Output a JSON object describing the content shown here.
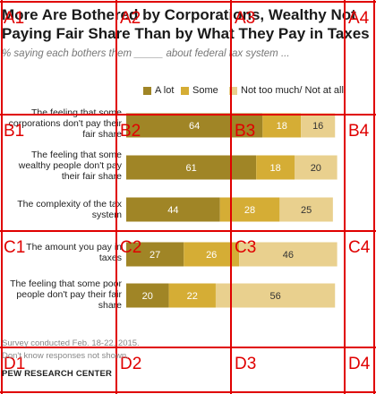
{
  "title": "More Are Bothered by Corporations, Wealthy Not Paying Fair Share Than by What They Pay in Taxes",
  "subtitle": "% saying each bothers them _____ about federal tax system ...",
  "notes": [
    "Survey conducted Feb. 18-22, 2015.",
    "Don't know responses not shown."
  ],
  "source": "PEW RESEARCH CENTER",
  "colors": {
    "a_lot": "#a08526",
    "some": "#d5ad35",
    "not_much": "#e9d08e"
  },
  "grid_labels": [
    "A1",
    "A2",
    "A3",
    "A4",
    "B1",
    "B2",
    "B3",
    "B4",
    "C1",
    "C2",
    "C3",
    "C4",
    "D1",
    "D2",
    "D3",
    "D4"
  ],
  "chart_data": {
    "type": "bar",
    "orientation": "horizontal",
    "stacked": true,
    "categories": [
      "The feeling that some corporations don't pay their fair share",
      "The feeling that some wealthy people don't pay their fair share",
      "The complexity of the tax system",
      "The amount you pay in taxes",
      "The feeling that some poor people don't pay their fair share"
    ],
    "series": [
      {
        "name": "A lot",
        "values": [
          64,
          61,
          44,
          27,
          20
        ]
      },
      {
        "name": "Some",
        "values": [
          18,
          18,
          28,
          26,
          22
        ]
      },
      {
        "name": "Not too much/ Not at all",
        "values": [
          16,
          20,
          25,
          46,
          56
        ]
      }
    ],
    "legend_position": "top"
  }
}
